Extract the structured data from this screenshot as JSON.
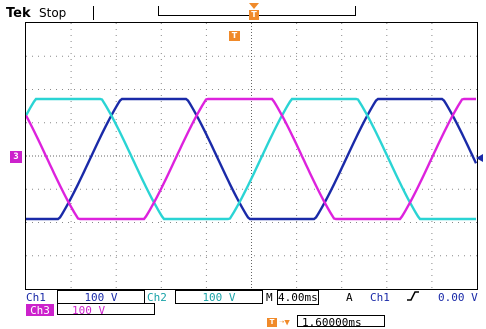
{
  "header": {
    "brand": "Tek",
    "run_state": "Stop",
    "trigger_icon_text": "T"
  },
  "screen": {
    "h_marker_text": "T",
    "ch3_marker_text": "3",
    "grid": "dotted 10x8 divisions",
    "traces": [
      {
        "name": "ch1",
        "color": "#1a2aa8"
      },
      {
        "name": "ch2",
        "color": "#2ad4d4"
      },
      {
        "name": "ch3",
        "color": "#dd22dd"
      }
    ]
  },
  "status": {
    "ch1_label": "Ch1",
    "ch1_scale": "100 V",
    "ch2_label": "Ch2",
    "ch2_scale": "100 V",
    "ch3_label": "Ch3",
    "ch3_scale": "100 V",
    "timebase_prefix": "M",
    "timebase": "4.00ms",
    "acq_mode": "A",
    "trigger_source": "Ch1",
    "trigger_slope_icon": "rising-edge-icon",
    "trigger_level": "0.00 V",
    "hpos_icon_text": "T",
    "hpos_value": "1.60000ms"
  },
  "colors": {
    "ch1": "#1a2aa8",
    "ch2": "#1aa3a8",
    "ch3": "#cc22cc",
    "trigger": "#f08a2a"
  }
}
